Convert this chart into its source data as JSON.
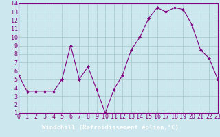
{
  "x": [
    0,
    1,
    2,
    3,
    4,
    5,
    6,
    7,
    8,
    9,
    10,
    11,
    12,
    13,
    14,
    15,
    16,
    17,
    18,
    19,
    20,
    21,
    22,
    23
  ],
  "y": [
    5.5,
    3.5,
    3.5,
    3.5,
    3.5,
    5.0,
    9.0,
    5.0,
    6.5,
    3.8,
    1.0,
    3.8,
    5.5,
    8.5,
    10.0,
    12.2,
    13.5,
    13.0,
    13.5,
    13.3,
    11.5,
    8.5,
    7.5,
    5.0
  ],
  "xlim": [
    0,
    23
  ],
  "ylim": [
    1,
    14
  ],
  "yticks": [
    1,
    2,
    3,
    4,
    5,
    6,
    7,
    8,
    9,
    10,
    11,
    12,
    13,
    14
  ],
  "xticks": [
    0,
    1,
    2,
    3,
    4,
    5,
    6,
    7,
    8,
    9,
    10,
    11,
    12,
    13,
    14,
    15,
    16,
    17,
    18,
    19,
    20,
    21,
    22,
    23
  ],
  "xlabel": "Windchill (Refroidissement éolien,°C)",
  "line_color": "#800080",
  "marker": "D",
  "marker_size": 2,
  "bg_color": "#cce8ee",
  "grid_color": "#aacccc",
  "tick_color": "#800080",
  "label_color": "#800080",
  "xlabel_fontsize": 6.5,
  "tick_fontsize": 6,
  "spine_color": "#800080",
  "bottom_bar_color": "#800080",
  "bottom_bar_height": 0.13
}
